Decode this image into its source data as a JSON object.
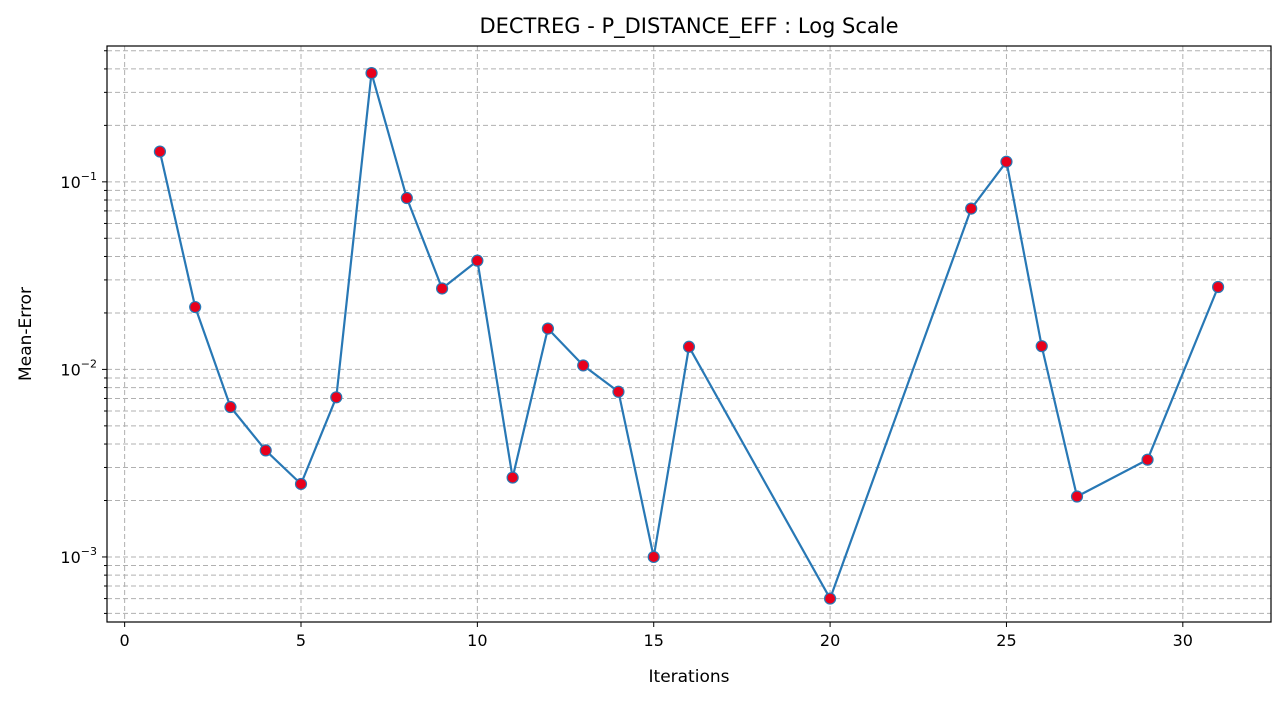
{
  "chart_data": {
    "type": "line",
    "title": "DECTREG - P_DISTANCE_EFF : Log Scale",
    "xlabel": "Iterations",
    "ylabel": "Mean-Error",
    "yscale": "log",
    "xlim": [
      -0.5,
      32.5
    ],
    "ylim": [
      0.00045,
      0.53
    ],
    "xticks": [
      0,
      5,
      10,
      15,
      20,
      25,
      30
    ],
    "xtick_labels": [
      "0",
      "5",
      "10",
      "15",
      "20",
      "25",
      "30"
    ],
    "yticks": [
      0.001,
      0.01,
      0.1
    ],
    "ytick_labels": [
      {
        "base": "10",
        "exp": "−3"
      },
      {
        "base": "10",
        "exp": "−2"
      },
      {
        "base": "10",
        "exp": "−1"
      }
    ],
    "grid": true,
    "line_color": "#2878b5",
    "marker_color": "#e8001c",
    "series": [
      {
        "x": [
          1,
          2,
          3,
          4,
          5,
          6,
          7,
          8,
          9,
          10,
          11,
          12,
          13,
          14,
          15,
          16,
          20,
          24,
          25,
          26,
          27,
          29,
          31
        ],
        "values": [
          0.145,
          0.0215,
          0.0063,
          0.0037,
          0.00245,
          0.0071,
          0.38,
          0.082,
          0.027,
          0.038,
          0.00265,
          0.0165,
          0.0105,
          0.0076,
          0.001,
          0.0132,
          0.0006,
          0.072,
          0.128,
          0.0133,
          0.0021,
          0.0033,
          0.0275
        ]
      }
    ]
  }
}
